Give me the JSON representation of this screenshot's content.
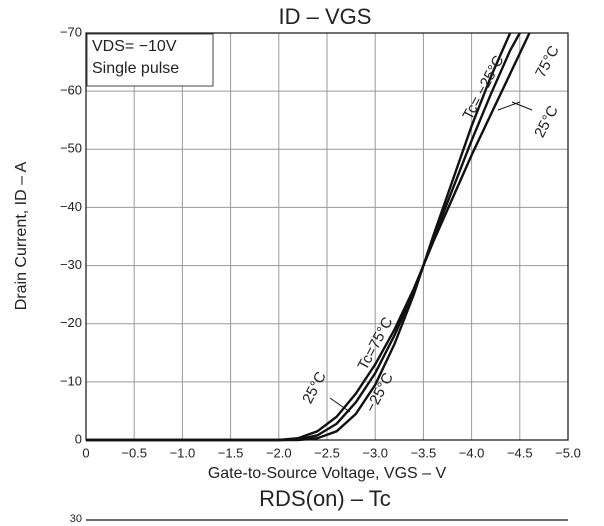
{
  "chart_data": [
    {
      "type": "line",
      "title": "ID – VGS",
      "x_label": "Gate-to-Source Voltage, VGS – V",
      "y_label": "Drain Current, ID – A",
      "notes": [
        "VDS= −10V",
        "Single pulse"
      ],
      "annotations": [
        "Tc= −25°C",
        "75°C",
        "25°C",
        "25°C",
        "Tc=75°C",
        "−25°C"
      ],
      "x": [
        0,
        -0.5,
        -1,
        -1.5,
        -2,
        -2.2,
        -2.4,
        -2.6,
        -2.8,
        -3,
        -3.2,
        -3.4,
        -3.5,
        -3.6,
        -3.8,
        -4,
        -4.2,
        -4.4,
        -4.5,
        -4.6
      ],
      "series": [
        {
          "name": "75°C",
          "color": "#111111",
          "values": [
            0,
            0,
            0,
            0,
            0,
            -0.3,
            -1.5,
            -4,
            -8,
            -13,
            -19,
            -26,
            -30,
            -34,
            -41.5,
            -49,
            -56,
            -63,
            -66.5,
            -70
          ]
        },
        {
          "name": "25°C",
          "color": "#111111",
          "values": [
            0,
            0,
            0,
            0,
            0,
            -0.1,
            -0.8,
            -2.8,
            -6.5,
            -11.5,
            -18,
            -25.5,
            -30,
            -34.5,
            -43,
            -51.5,
            -59.5,
            -67,
            -70,
            null
          ]
        },
        {
          "name": "−25°C",
          "color": "#111111",
          "values": [
            0,
            0,
            0,
            0,
            0,
            0,
            -0.3,
            -1.5,
            -4.5,
            -9.5,
            -16.5,
            -25,
            -30,
            -35,
            -44.5,
            -54,
            -62.5,
            -70,
            null,
            null
          ]
        }
      ],
      "xlim": [
        0,
        -5
      ],
      "ylim": [
        0,
        -70
      ],
      "xticks": [
        0,
        {
          "value": -0.5,
          "label": "−0.5"
        },
        {
          "value": -1,
          "label": "−1.0"
        },
        {
          "value": -1.5,
          "label": "−1.5"
        },
        {
          "value": -2,
          "label": "−2.0"
        },
        {
          "value": -2.5,
          "label": "−2.5"
        },
        {
          "value": -3,
          "label": "−3.0"
        },
        {
          "value": -3.5,
          "label": "−3.5"
        },
        {
          "value": -4,
          "label": "−4.0"
        },
        {
          "value": -4.5,
          "label": "−4.5"
        },
        {
          "value": -5,
          "label": "−5.0"
        }
      ],
      "yticks": [
        0,
        {
          "value": -10,
          "label": "−10"
        },
        {
          "value": -20,
          "label": "−20"
        },
        {
          "value": -30,
          "label": "−30"
        },
        {
          "value": -40,
          "label": "−40"
        },
        {
          "value": -50,
          "label": "−50"
        },
        {
          "value": -60,
          "label": "−60"
        },
        {
          "value": -70,
          "label": "−70"
        }
      ],
      "grid": true
    },
    {
      "type": "line",
      "title": "RDS(on) – Tc",
      "yticks": [
        30
      ]
    }
  ]
}
